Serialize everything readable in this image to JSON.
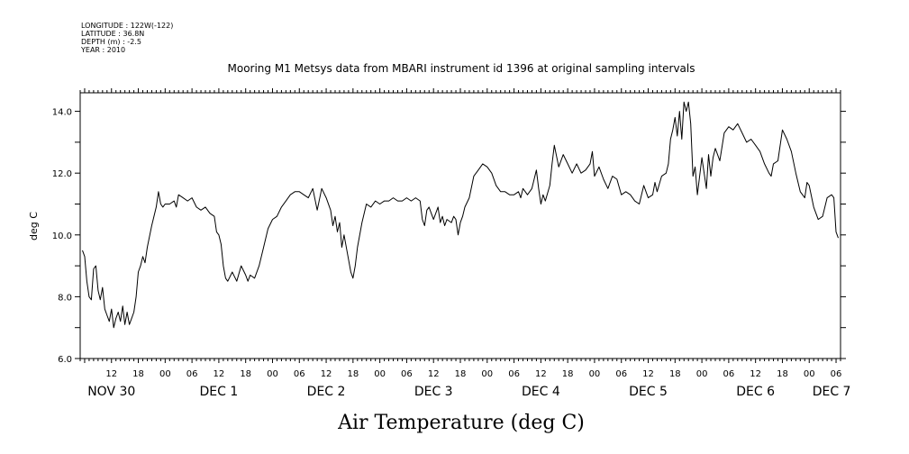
{
  "header": {
    "longitude": "LONGITUDE : 122W(-122)",
    "latitude": "LATITUDE : 36.8N",
    "depth": "DEPTH (m) : -2.5",
    "year": "YEAR : 2010"
  },
  "chart_data": {
    "type": "line",
    "title": "Mooring M1 Metsys data from MBARI instrument id 1396 at original sampling intervals",
    "xlabel": "Air Temperature (deg C)",
    "ylabel": "deg C",
    "ylim": [
      6.0,
      14.6
    ],
    "xlim": [
      5,
      175
    ],
    "yticks": [
      {
        "value": 6.0,
        "label": "6.0"
      },
      {
        "value": 8.0,
        "label": "8.0"
      },
      {
        "value": 10.0,
        "label": "10.0"
      },
      {
        "value": 12.0,
        "label": "12.0"
      },
      {
        "value": 14.0,
        "label": "14.0"
      }
    ],
    "hour_ticks": [
      {
        "x": 12,
        "label": "12"
      },
      {
        "x": 18,
        "label": "18"
      },
      {
        "x": 24,
        "label": "00"
      },
      {
        "x": 30,
        "label": "06"
      },
      {
        "x": 36,
        "label": "12"
      },
      {
        "x": 42,
        "label": "18"
      },
      {
        "x": 48,
        "label": "00"
      },
      {
        "x": 54,
        "label": "06"
      },
      {
        "x": 60,
        "label": "12"
      },
      {
        "x": 66,
        "label": "18"
      },
      {
        "x": 72,
        "label": "00"
      },
      {
        "x": 78,
        "label": "06"
      },
      {
        "x": 84,
        "label": "12"
      },
      {
        "x": 90,
        "label": "18"
      },
      {
        "x": 96,
        "label": "00"
      },
      {
        "x": 102,
        "label": "06"
      },
      {
        "x": 108,
        "label": "12"
      },
      {
        "x": 114,
        "label": "18"
      },
      {
        "x": 120,
        "label": "00"
      },
      {
        "x": 126,
        "label": "06"
      },
      {
        "x": 132,
        "label": "12"
      },
      {
        "x": 138,
        "label": "18"
      },
      {
        "x": 144,
        "label": "00"
      },
      {
        "x": 150,
        "label": "06"
      },
      {
        "x": 156,
        "label": "12"
      },
      {
        "x": 162,
        "label": "18"
      },
      {
        "x": 168,
        "label": "00"
      },
      {
        "x": 174,
        "label": "06"
      }
    ],
    "day_labels": [
      {
        "x": 12,
        "label": "NOV 30"
      },
      {
        "x": 36,
        "label": "DEC  1"
      },
      {
        "x": 60,
        "label": "DEC  2"
      },
      {
        "x": 84,
        "label": "DEC  3"
      },
      {
        "x": 108,
        "label": "DEC  4"
      },
      {
        "x": 132,
        "label": "DEC  5"
      },
      {
        "x": 156,
        "label": "DEC  6"
      },
      {
        "x": 173,
        "label": "DEC  7"
      }
    ],
    "series": [
      {
        "color": "#000000",
        "x": [
          5.5,
          6,
          6.5,
          7,
          7.5,
          8,
          8.5,
          9,
          9.5,
          10,
          10.5,
          11,
          11.5,
          12,
          12.5,
          13,
          13.5,
          14,
          14.5,
          15,
          15.5,
          16,
          16.5,
          17,
          17.5,
          18,
          18.5,
          19,
          19.5,
          20,
          21,
          22,
          22.5,
          23,
          23.5,
          24,
          25,
          26,
          26.5,
          27,
          28,
          29,
          30,
          31,
          32,
          33,
          34,
          35,
          35.5,
          36,
          36.5,
          37,
          37.5,
          38,
          39,
          40,
          41,
          42,
          42.5,
          43,
          44,
          45,
          46,
          47,
          48,
          49,
          50,
          51,
          52,
          53,
          54,
          55,
          56,
          57,
          58,
          59,
          60,
          61,
          61.5,
          62,
          62.5,
          63,
          63.5,
          64,
          65,
          65.5,
          66,
          66.5,
          67,
          68,
          69,
          70,
          71,
          72,
          73,
          74,
          75,
          76,
          77,
          78,
          79,
          80,
          81,
          81.5,
          82,
          82.5,
          83,
          84,
          85,
          85.5,
          86,
          86.5,
          87,
          88,
          88.5,
          89,
          89.5,
          90,
          90.5,
          91,
          92,
          93,
          94,
          95,
          96,
          97,
          98,
          99,
          100,
          101,
          102,
          103,
          103.5,
          104,
          105,
          106,
          107,
          107.5,
          108,
          108.5,
          109,
          110,
          110.5,
          111,
          112,
          113,
          114,
          115,
          116,
          117,
          118,
          119,
          119.5,
          120,
          121,
          122,
          123,
          124,
          125,
          126,
          127,
          128,
          129,
          130,
          131,
          132,
          133,
          133.5,
          134,
          135,
          136,
          136.5,
          137,
          137.5,
          138,
          138.5,
          139,
          139.5,
          140,
          140.5,
          141,
          141.5,
          142,
          142.5,
          143,
          143.5,
          144,
          145,
          145.5,
          146,
          146.5,
          147,
          148,
          149,
          150,
          151,
          152,
          153,
          154,
          155,
          156,
          157,
          158,
          159,
          159.5,
          160,
          161,
          162,
          163,
          164,
          165,
          166,
          167,
          167.5,
          168,
          169,
          170,
          171,
          172,
          173,
          173.5,
          174,
          174.5
        ],
        "y": [
          9.5,
          9.3,
          8.5,
          8.0,
          7.9,
          8.9,
          9.0,
          8.2,
          7.9,
          8.3,
          7.6,
          7.4,
          7.2,
          7.6,
          7.0,
          7.3,
          7.5,
          7.2,
          7.7,
          7.1,
          7.5,
          7.1,
          7.3,
          7.5,
          8.0,
          8.8,
          9.0,
          9.3,
          9.1,
          9.6,
          10.3,
          10.9,
          11.4,
          11.0,
          10.9,
          11.0,
          11.0,
          11.1,
          10.9,
          11.3,
          11.2,
          11.1,
          11.2,
          10.9,
          10.8,
          10.9,
          10.7,
          10.6,
          10.1,
          10.0,
          9.7,
          9.0,
          8.6,
          8.5,
          8.8,
          8.5,
          9.0,
          8.7,
          8.5,
          8.7,
          8.6,
          9.0,
          9.6,
          10.2,
          10.5,
          10.6,
          10.9,
          11.1,
          11.3,
          11.4,
          11.4,
          11.3,
          11.2,
          11.5,
          10.8,
          11.5,
          11.2,
          10.8,
          10.3,
          10.6,
          10.1,
          10.4,
          9.6,
          10.0,
          9.2,
          8.8,
          8.6,
          9.0,
          9.6,
          10.4,
          11.0,
          10.9,
          11.1,
          11.0,
          11.1,
          11.1,
          11.2,
          11.1,
          11.1,
          11.2,
          11.1,
          11.2,
          11.1,
          10.5,
          10.3,
          10.8,
          10.9,
          10.5,
          10.9,
          10.4,
          10.6,
          10.3,
          10.5,
          10.4,
          10.6,
          10.5,
          10.0,
          10.4,
          10.6,
          10.9,
          11.2,
          11.9,
          12.1,
          12.3,
          12.2,
          12.0,
          11.6,
          11.4,
          11.4,
          11.3,
          11.3,
          11.4,
          11.2,
          11.5,
          11.3,
          11.5,
          12.1,
          11.5,
          11.0,
          11.3,
          11.1,
          11.6,
          12.3,
          12.9,
          12.2,
          12.6,
          12.3,
          12.0,
          12.3,
          12.0,
          12.1,
          12.3,
          12.7,
          11.9,
          12.2,
          11.8,
          11.5,
          11.9,
          11.8,
          11.3,
          11.4,
          11.3,
          11.1,
          11.0,
          11.6,
          11.2,
          11.3,
          11.7,
          11.4,
          11.9,
          12.0,
          12.3,
          13.1,
          13.4,
          13.8,
          13.2,
          14.0,
          13.1,
          14.3,
          14.0,
          14.3,
          13.6,
          11.9,
          12.2,
          11.3,
          11.9,
          12.5,
          11.5,
          12.6,
          11.9,
          12.5,
          12.8,
          12.4,
          13.3,
          13.5,
          13.4,
          13.6,
          13.3,
          13.0,
          13.1,
          12.9,
          12.7,
          12.3,
          12.0,
          11.9,
          12.3,
          12.4,
          13.4,
          13.1,
          12.7,
          12.0,
          11.4,
          11.2,
          11.7,
          11.6,
          10.9,
          10.5,
          10.6,
          11.2,
          11.3,
          11.2,
          10.1,
          9.9
        ]
      }
    ]
  }
}
